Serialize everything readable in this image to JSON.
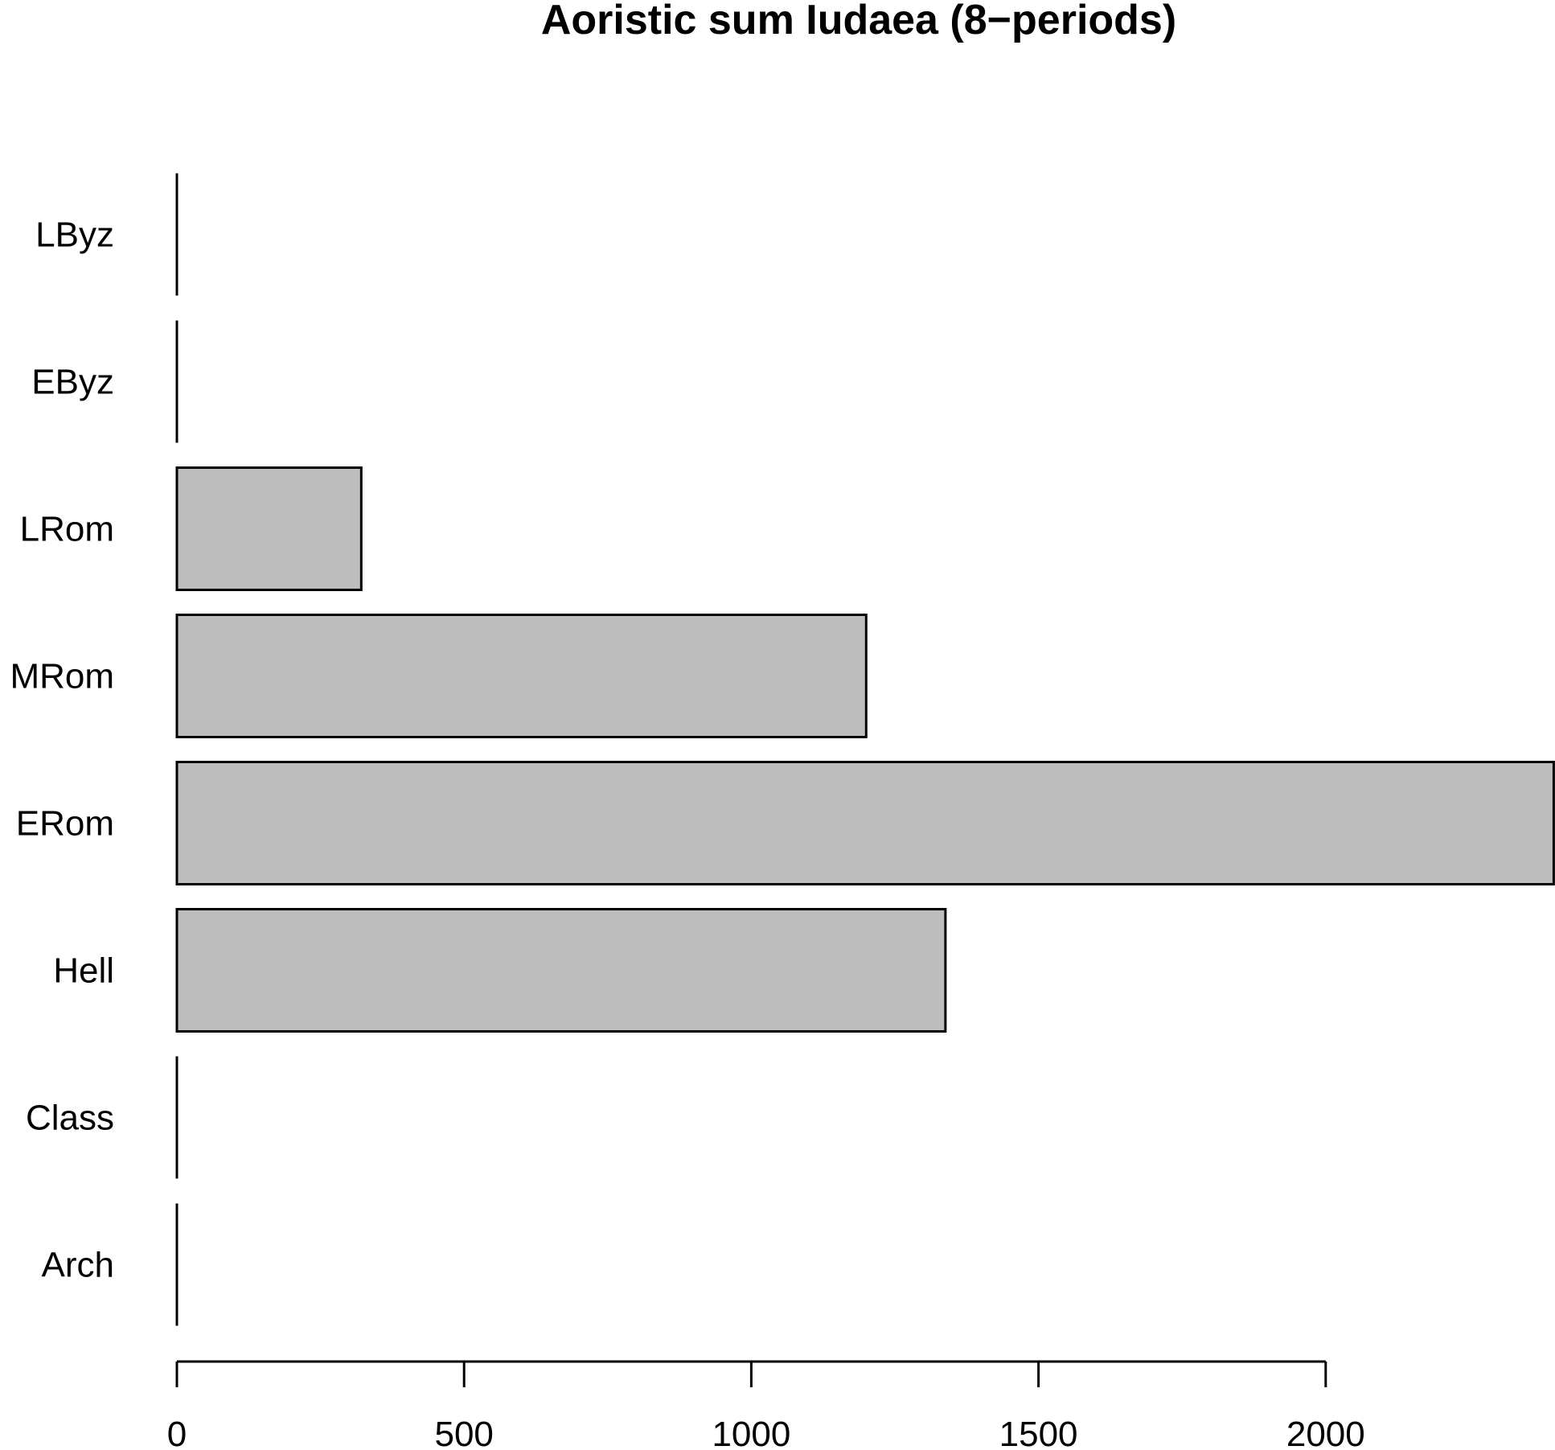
{
  "chart_data": {
    "type": "bar",
    "orientation": "horizontal",
    "title": "Aoristic sum Iudaea (8−periods)",
    "xlabel": "",
    "ylabel": "",
    "categories": [
      "Arch",
      "Class",
      "Hell",
      "ERom",
      "MRom",
      "LRom",
      "EByz",
      "LByz"
    ],
    "values": [
      0,
      0,
      1338,
      2397,
      1200,
      321,
      0,
      0
    ],
    "xlim": [
      0,
      2397
    ],
    "xticks": [
      0,
      500,
      1000,
      1500,
      2000
    ],
    "grid": false,
    "legend": "none",
    "bar_fill": "#bebebe",
    "bar_stroke": "#000000"
  }
}
